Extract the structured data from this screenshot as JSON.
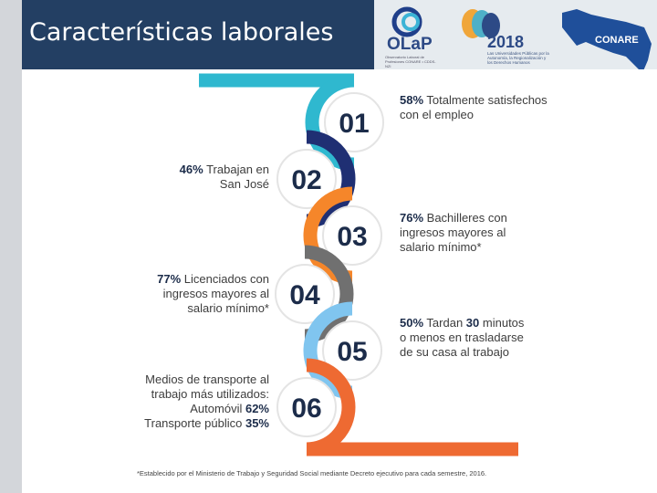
{
  "header": {
    "title": "Características laborales"
  },
  "banner": {
    "olap_label": "OLaP",
    "olap_sub": "Observatorio Laboral de Profesiones CONARE • CDDS-NZI",
    "year": "2018",
    "year_sub": "Las Universidades Públicas por la Autonomía, la Regionalización y los Derechos Humanos",
    "conare_label": "CONARE"
  },
  "steps": [
    {
      "number": "01",
      "color": "#2fb8cf",
      "pct": "58%",
      "text": "Totalmente satisfechos con el empleo"
    },
    {
      "number": "02",
      "color": "#1f2f73",
      "pct": "46%",
      "text": "Trabajan en San José"
    },
    {
      "number": "03",
      "color": "#f5862a",
      "pct": "76%",
      "text": "Bachilleres con ingresos mayores al salario mínimo*"
    },
    {
      "number": "04",
      "color": "#707070",
      "pct": "77%",
      "text": "Licenciados con ingresos mayores al salario mínimo*"
    },
    {
      "number": "05",
      "color": "#80c5ef",
      "pct": "50%",
      "text_a": "Tardan",
      "num": "30",
      "text_b": "minutos o menos en trasladarse de su casa al trabajo"
    },
    {
      "number": "06",
      "color": "#ee6a32",
      "intro": "Medios de transporte al trabajo más utilizados:",
      "mode1": "Automóvil",
      "pct1": "62%",
      "mode2": "Transporte público",
      "pct2": "35%"
    }
  ],
  "footnote": "*Establecido por el Ministerio de Trabajo y Seguridad Social mediante Decreto ejecutivo para cada semestre, 2016.",
  "colors": {
    "header_bg": "#233f63",
    "number_text": "#1c2c4a"
  }
}
